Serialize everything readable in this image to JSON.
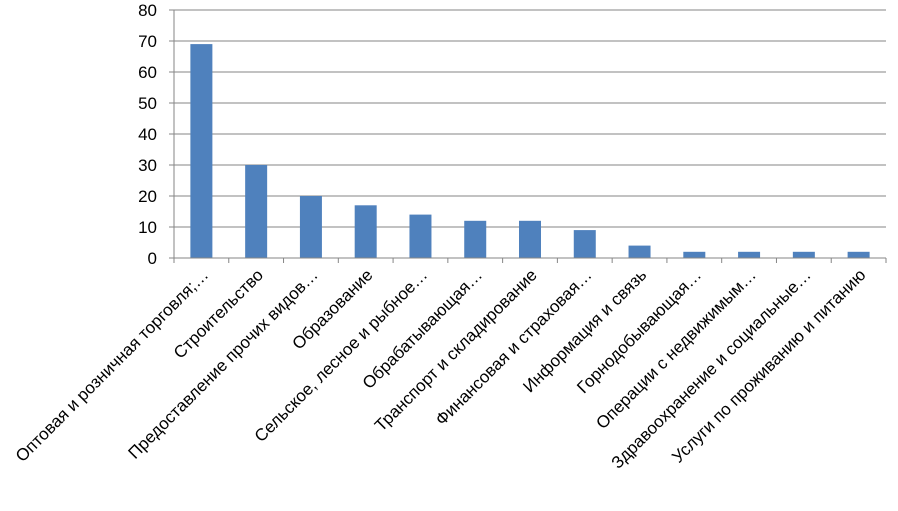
{
  "chart_data": {
    "type": "bar",
    "title": "",
    "xlabel": "",
    "ylabel": "",
    "ylim": [
      0,
      80
    ],
    "yticks": [
      0,
      10,
      20,
      30,
      40,
      50,
      60,
      70,
      80
    ],
    "grid": true,
    "legend": "none",
    "bar_color": "#4F81BD",
    "categories": [
      "Оптовая и розничная торговля;…",
      "Строительство",
      "Предоставление прочих видов…",
      "Образование",
      "Сельское, лесное и рыбное…",
      "Обрабатывающая…",
      "Транспорт и складирование",
      "Финансовая и страховая…",
      "Информация и связь",
      "Горнодобывающая…",
      "Операции с недвижимым…",
      "Здравоохранение и социальные…",
      "Услуги по проживанию и питанию"
    ],
    "values": [
      69,
      30,
      20,
      17,
      14,
      12,
      12,
      9,
      4,
      2,
      2,
      2,
      2
    ]
  }
}
